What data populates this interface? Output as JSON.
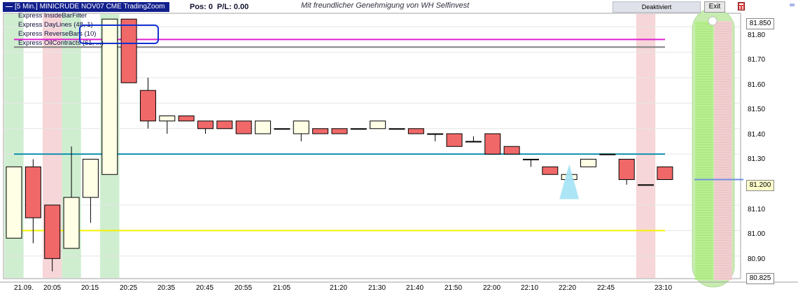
{
  "title": "[5 Min.] MINICRUDE NOV07   CME TradingZoom",
  "position": {
    "pos": "Pos: 0",
    "pl": "P/L: 0.00"
  },
  "notice": "Mit freundlicher Genehmigung von WH Selfinvest",
  "buttons": {
    "deactivate": "Deaktiviert",
    "exit": "Exit"
  },
  "indicators": [
    "Express InsideBarFilter",
    "Express DayLines  (48, 1)",
    "Express ReverseBars  (10)",
    "Express OilContracts  (61, ...)"
  ],
  "colors": {
    "bull_fill": "#ffffe6",
    "bear_fill": "#f06868",
    "green_zone": "#cfeed0",
    "red_zone": "#f6d6d8",
    "magenta_line": "#e020d0",
    "gray_line": "#808080",
    "teal_line": "#1090b0",
    "yellow_line": "#f5f000",
    "arrow": "#a8e4f4"
  },
  "price_axis": {
    "ticks": [
      "81.80",
      "81.70",
      "81.60",
      "81.50",
      "81.40",
      "81.30",
      "81.10",
      "81.00",
      "80.90"
    ],
    "tick_values": [
      81.8,
      81.7,
      81.6,
      81.5,
      81.4,
      81.3,
      81.1,
      81.0,
      80.9
    ],
    "top_value": "81.850",
    "bottom_value": "80.825",
    "current_value": "81.200",
    "current": 81.2
  },
  "time_axis": [
    "21.09.",
    "20:05",
    "20:15",
    "20:25",
    "20:35",
    "20:45",
    "20:55",
    "21:05",
    "21:20",
    "21:30",
    "21:40",
    "21:50",
    "22:00",
    "22:10",
    "22:20",
    "22:45",
    "23:10"
  ],
  "chart_data": {
    "type": "candlestick",
    "ylim": [
      80.825,
      81.85
    ],
    "candles": [
      {
        "o": 80.97,
        "h": 81.25,
        "l": 80.97,
        "c": 81.25
      },
      {
        "o": 81.25,
        "h": 81.28,
        "l": 80.95,
        "c": 81.05
      },
      {
        "o": 81.1,
        "h": 81.1,
        "l": 80.84,
        "c": 80.89
      },
      {
        "o": 80.93,
        "h": 81.33,
        "l": 80.93,
        "c": 81.13
      },
      {
        "o": 81.13,
        "h": 81.28,
        "l": 81.03,
        "c": 81.28
      },
      {
        "o": 81.22,
        "h": 81.83,
        "l": 81.22,
        "c": 81.83
      },
      {
        "o": 81.83,
        "h": 81.83,
        "l": 81.58,
        "c": 81.58
      },
      {
        "o": 81.55,
        "h": 81.6,
        "l": 81.4,
        "c": 81.43
      },
      {
        "o": 81.43,
        "h": 81.45,
        "l": 81.38,
        "c": 81.45
      },
      {
        "o": 81.45,
        "h": 81.45,
        "l": 81.43,
        "c": 81.43
      },
      {
        "o": 81.43,
        "h": 81.43,
        "l": 81.38,
        "c": 81.4
      },
      {
        "o": 81.43,
        "h": 81.43,
        "l": 81.4,
        "c": 81.4
      },
      {
        "o": 81.43,
        "h": 81.43,
        "l": 81.38,
        "c": 81.38
      },
      {
        "o": 81.38,
        "h": 81.43,
        "l": 81.38,
        "c": 81.43
      },
      {
        "o": 81.4,
        "h": 81.4,
        "l": 81.4,
        "c": 81.4
      },
      {
        "o": 81.38,
        "h": 81.43,
        "l": 81.35,
        "c": 81.43
      },
      {
        "o": 81.4,
        "h": 81.4,
        "l": 81.38,
        "c": 81.38
      },
      {
        "o": 81.4,
        "h": 81.4,
        "l": 81.38,
        "c": 81.38
      },
      {
        "o": 81.4,
        "h": 81.4,
        "l": 81.4,
        "c": 81.4
      },
      {
        "o": 81.4,
        "h": 81.43,
        "l": 81.4,
        "c": 81.43
      },
      {
        "o": 81.4,
        "h": 81.4,
        "l": 81.4,
        "c": 81.4
      },
      {
        "o": 81.4,
        "h": 81.4,
        "l": 81.38,
        "c": 81.38
      },
      {
        "o": 81.38,
        "h": 81.38,
        "l": 81.35,
        "c": 81.38
      },
      {
        "o": 81.38,
        "h": 81.38,
        "l": 81.33,
        "c": 81.33
      },
      {
        "o": 81.35,
        "h": 81.37,
        "l": 81.35,
        "c": 81.35
      },
      {
        "o": 81.38,
        "h": 81.38,
        "l": 81.3,
        "c": 81.3
      },
      {
        "o": 81.33,
        "h": 81.33,
        "l": 81.3,
        "c": 81.3
      },
      {
        "o": 81.28,
        "h": 81.28,
        "l": 81.25,
        "c": 81.28
      },
      {
        "o": 81.25,
        "h": 81.25,
        "l": 81.22,
        "c": 81.22
      },
      {
        "o": 81.2,
        "h": 81.22,
        "l": 81.2,
        "c": 81.22
      },
      {
        "o": 81.25,
        "h": 81.28,
        "l": 81.25,
        "c": 81.28
      },
      {
        "o": 81.3,
        "h": 81.3,
        "l": 81.3,
        "c": 81.3
      },
      {
        "o": 81.28,
        "h": 81.28,
        "l": 81.18,
        "c": 81.2
      },
      {
        "o": 81.18,
        "h": 81.18,
        "l": 81.18,
        "c": 81.18
      },
      {
        "o": 81.25,
        "h": 81.25,
        "l": 81.2,
        "c": 81.2
      }
    ],
    "hlines": [
      {
        "value": 81.75,
        "color": "#e020d0"
      },
      {
        "value": 81.72,
        "color": "#808080"
      },
      {
        "value": 81.3,
        "color": "#1090b0"
      },
      {
        "value": 81.0,
        "color": "#f5f000"
      }
    ],
    "zones": [
      {
        "from": 0,
        "to": 0,
        "color": "green"
      },
      {
        "from": 2,
        "to": 2,
        "color": "red"
      },
      {
        "from": 3,
        "to": 3,
        "color": "green"
      },
      {
        "from": 5,
        "to": 5,
        "color": "green"
      },
      {
        "from": 33,
        "to": 33,
        "color": "red"
      }
    ],
    "signal_index": 29
  }
}
